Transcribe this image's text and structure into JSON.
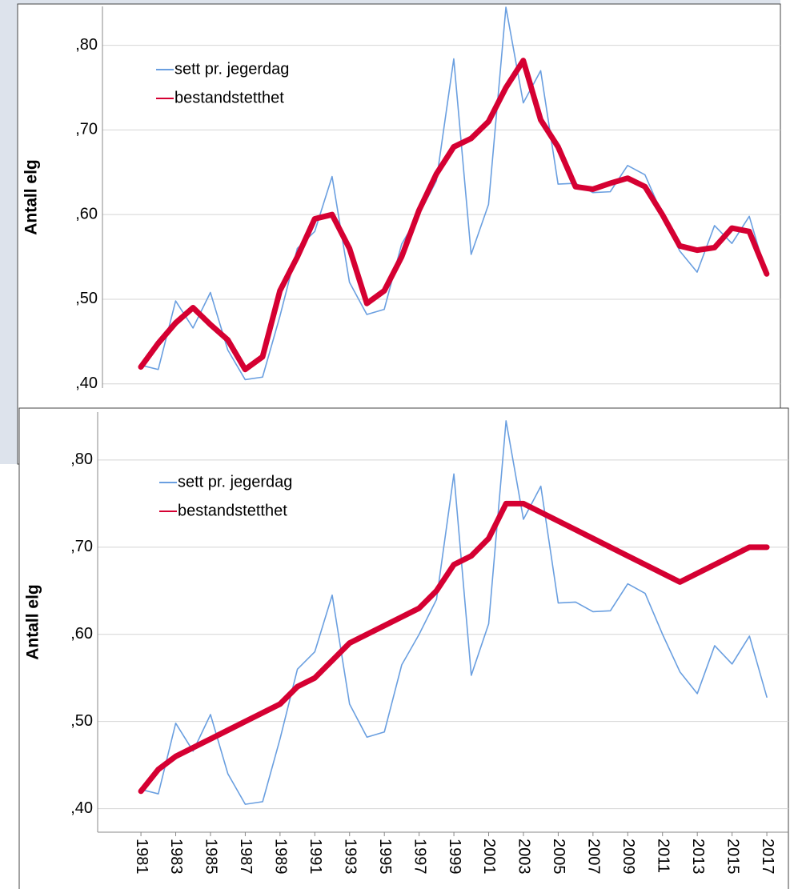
{
  "chart_data": [
    {
      "type": "line",
      "ylabel": "Antall elg",
      "x": [
        1981,
        1982,
        1983,
        1984,
        1985,
        1986,
        1987,
        1988,
        1989,
        1990,
        1991,
        1992,
        1993,
        1994,
        1995,
        1996,
        1997,
        1998,
        1999,
        2000,
        2001,
        2002,
        2003,
        2004,
        2005,
        2006,
        2007,
        2008,
        2009,
        2010,
        2011,
        2012,
        2013,
        2014,
        2015,
        2016,
        2017
      ],
      "xlim": [
        1978.79,
        2017.79
      ],
      "ylim": [
        0.395,
        0.846
      ],
      "yticks": [
        {
          "value": 0.4,
          "label": ",40"
        },
        {
          "value": 0.5,
          "label": ",50"
        },
        {
          "value": 0.6,
          "label": ",60"
        },
        {
          "value": 0.7,
          "label": ",70"
        },
        {
          "value": 0.8,
          "label": ",80"
        }
      ],
      "grid": true,
      "legend": "upper left",
      "series": [
        {
          "name": "sett pr. jegerdag",
          "color": "#6a9fe0",
          "values": [
            0.422,
            0.417,
            0.498,
            0.466,
            0.508,
            0.44,
            0.405,
            0.408,
            0.48,
            0.56,
            0.58,
            0.645,
            0.52,
            0.482,
            0.488,
            0.565,
            0.6,
            0.64,
            0.784,
            0.553,
            0.612,
            0.845,
            0.732,
            0.77,
            0.636,
            0.637,
            0.626,
            0.627,
            0.658,
            0.647,
            0.6,
            0.557,
            0.532,
            0.587,
            0.566,
            0.598,
            0.528
          ]
        },
        {
          "name": "bestandstetthet",
          "color": "#d50032",
          "values": [
            0.42,
            0.448,
            0.472,
            0.49,
            0.47,
            0.452,
            0.417,
            0.432,
            0.51,
            0.55,
            0.595,
            0.6,
            0.56,
            0.495,
            0.51,
            0.55,
            0.605,
            0.648,
            0.68,
            0.69,
            0.71,
            0.75,
            0.782,
            0.712,
            0.68,
            0.633,
            0.63,
            0.637,
            0.643,
            0.633,
            0.6,
            0.563,
            0.558,
            0.561,
            0.584,
            0.58,
            0.53
          ]
        }
      ]
    },
    {
      "type": "line",
      "ylabel": "Antall elg",
      "x": [
        1981,
        1982,
        1983,
        1984,
        1985,
        1986,
        1987,
        1988,
        1989,
        1990,
        1991,
        1992,
        1993,
        1994,
        1995,
        1996,
        1997,
        1998,
        1999,
        2000,
        2001,
        2002,
        2003,
        2004,
        2005,
        2006,
        2007,
        2008,
        2009,
        2010,
        2011,
        2012,
        2013,
        2014,
        2015,
        2016,
        2017
      ],
      "xlim": [
        1978.51,
        2018.24
      ],
      "xticks": [
        1981,
        1983,
        1985,
        1987,
        1989,
        1991,
        1993,
        1995,
        1997,
        1999,
        2001,
        2003,
        2005,
        2007,
        2009,
        2011,
        2013,
        2015,
        2017
      ],
      "ylim": [
        0.373,
        0.855
      ],
      "yticks": [
        {
          "value": 0.4,
          "label": ",40"
        },
        {
          "value": 0.5,
          "label": ",50"
        },
        {
          "value": 0.6,
          "label": ",60"
        },
        {
          "value": 0.7,
          "label": ",70"
        },
        {
          "value": 0.8,
          "label": ",80"
        }
      ],
      "grid": true,
      "legend": "upper left",
      "series": [
        {
          "name": "sett pr. jegerdag",
          "color": "#6a9fe0",
          "values": [
            0.422,
            0.417,
            0.498,
            0.466,
            0.508,
            0.44,
            0.405,
            0.408,
            0.48,
            0.56,
            0.58,
            0.645,
            0.52,
            0.482,
            0.488,
            0.565,
            0.6,
            0.64,
            0.784,
            0.553,
            0.612,
            0.845,
            0.732,
            0.77,
            0.636,
            0.637,
            0.626,
            0.627,
            0.658,
            0.647,
            0.6,
            0.557,
            0.532,
            0.587,
            0.566,
            0.598,
            0.528
          ]
        },
        {
          "name": "bestandstetthet",
          "color": "#d50032",
          "values": [
            0.42,
            0.445,
            0.46,
            0.47,
            0.48,
            0.49,
            0.5,
            0.51,
            0.52,
            0.54,
            0.55,
            0.57,
            0.59,
            0.6,
            0.61,
            0.62,
            0.63,
            0.65,
            0.68,
            0.69,
            0.71,
            0.75,
            0.75,
            0.74,
            0.73,
            0.72,
            0.71,
            0.7,
            0.69,
            0.68,
            0.67,
            0.66,
            0.67,
            0.68,
            0.69,
            0.7,
            0.7
          ]
        }
      ]
    }
  ]
}
